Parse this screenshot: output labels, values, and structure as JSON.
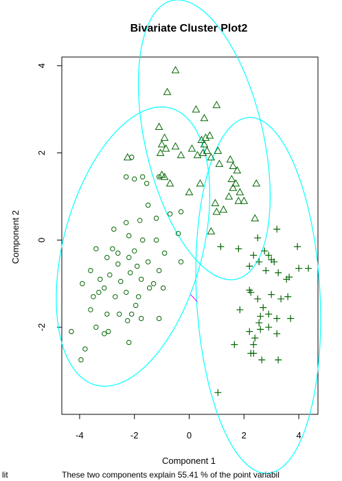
{
  "chart_data": {
    "type": "scatter",
    "title": "Bivariate Cluster Plot2",
    "xlabel": "Component 1",
    "ylabel": "Component 2",
    "subtitle_left": "lit",
    "subtitle": "These two components explain 55.41 % of the point variabil",
    "xlim": [
      -4.65,
      4.7
    ],
    "ylim": [
      -4.0,
      4.2
    ],
    "xticks": [
      -4,
      -2,
      0,
      2,
      4
    ],
    "yticks": [
      -2,
      0,
      2,
      4
    ],
    "colors": {
      "points": "#006400",
      "ellipse": "#00ffff",
      "segment": "#ff00ff",
      "frame": "#000000"
    },
    "ellipses": [
      {
        "center": [
          0.55,
          2.3
        ],
        "semi_axes": [
          3.45,
          2.05
        ],
        "angle_deg": -63
      },
      {
        "center": [
          -2.05,
          -0.15
        ],
        "semi_axes": [
          3.55,
          2.35
        ],
        "angle_deg": 55
      },
      {
        "center": [
          2.52,
          -1.27
        ],
        "semi_axes": [
          4.1,
          2.25
        ],
        "angle_deg": -84
      }
    ],
    "segment": [
      [
        0.05,
        -1.25
      ],
      [
        0.3,
        -1.42
      ]
    ],
    "series": [
      {
        "marker": "triangle",
        "points": [
          [
            -0.5,
            3.9
          ],
          [
            -0.8,
            3.4
          ],
          [
            0.25,
            3.0
          ],
          [
            0.55,
            2.8
          ],
          [
            1.0,
            3.1
          ],
          [
            -1.1,
            2.6
          ],
          [
            -0.9,
            2.35
          ],
          [
            -1.0,
            2.2
          ],
          [
            -0.85,
            2.1
          ],
          [
            -1.05,
            2.0
          ],
          [
            -0.5,
            2.15
          ],
          [
            -0.3,
            1.95
          ],
          [
            0.1,
            2.1
          ],
          [
            0.3,
            1.95
          ],
          [
            0.45,
            2.3
          ],
          [
            0.55,
            2.2
          ],
          [
            0.6,
            2.35
          ],
          [
            0.5,
            2.0
          ],
          [
            0.65,
            2.05
          ],
          [
            0.75,
            2.4
          ],
          [
            0.8,
            1.9
          ],
          [
            1.05,
            2.05
          ],
          [
            1.1,
            1.75
          ],
          [
            1.5,
            1.85
          ],
          [
            1.6,
            1.7
          ],
          [
            1.75,
            1.6
          ],
          [
            1.55,
            1.4
          ],
          [
            1.6,
            1.2
          ],
          [
            1.7,
            1.3
          ],
          [
            1.85,
            1.1
          ],
          [
            2.0,
            0.9
          ],
          [
            1.45,
            1.0
          ],
          [
            1.25,
            0.7
          ],
          [
            1.8,
            0.9
          ],
          [
            2.45,
            1.3
          ],
          [
            -2.25,
            1.9
          ],
          [
            -1.0,
            1.5
          ],
          [
            -0.7,
            1.3
          ],
          [
            0.0,
            1.1
          ],
          [
            0.4,
            1.3
          ],
          [
            -0.9,
            1.45
          ],
          [
            1.0,
            0.65
          ],
          [
            0.95,
            0.85
          ],
          [
            2.4,
            0.5
          ],
          [
            0.8,
            0.2
          ]
        ]
      },
      {
        "marker": "circle",
        "points": [
          [
            -2.1,
            1.9
          ],
          [
            -2.3,
            1.45
          ],
          [
            -2.0,
            1.4
          ],
          [
            -1.7,
            1.45
          ],
          [
            -1.55,
            1.3
          ],
          [
            -1.1,
            1.45
          ],
          [
            -0.7,
            0.6
          ],
          [
            -1.2,
            0.5
          ],
          [
            -1.5,
            0.8
          ],
          [
            -0.3,
            0.65
          ],
          [
            -2.3,
            0.4
          ],
          [
            -1.8,
            0.45
          ],
          [
            -2.2,
            0.1
          ],
          [
            -2.75,
            0.25
          ],
          [
            -3.4,
            -0.2
          ],
          [
            -2.8,
            -0.2
          ],
          [
            -2.0,
            -0.25
          ],
          [
            -1.7,
            0.0
          ],
          [
            -1.2,
            0.0
          ],
          [
            -0.9,
            -0.3
          ],
          [
            -0.3,
            -0.5
          ],
          [
            -3.0,
            -0.4
          ],
          [
            -2.6,
            -0.3
          ],
          [
            -2.2,
            -0.4
          ],
          [
            -1.9,
            -0.6
          ],
          [
            -1.5,
            -0.5
          ],
          [
            -1.1,
            -0.7
          ],
          [
            -3.6,
            -0.7
          ],
          [
            -3.25,
            -0.9
          ],
          [
            -2.9,
            -0.8
          ],
          [
            -2.5,
            -0.95
          ],
          [
            -2.15,
            -0.75
          ],
          [
            -1.75,
            -0.9
          ],
          [
            -1.3,
            -1.0
          ],
          [
            -0.95,
            -1.1
          ],
          [
            -3.9,
            -1.0
          ],
          [
            -3.5,
            -1.3
          ],
          [
            -3.1,
            -1.1
          ],
          [
            -2.7,
            -1.3
          ],
          [
            -2.3,
            -1.2
          ],
          [
            -1.95,
            -1.5
          ],
          [
            -1.45,
            -1.1
          ],
          [
            -3.6,
            -1.6
          ],
          [
            -3.0,
            -1.7
          ],
          [
            -2.55,
            -1.7
          ],
          [
            -2.1,
            -1.7
          ],
          [
            -1.75,
            -1.8
          ],
          [
            -3.4,
            -2.0
          ],
          [
            -2.95,
            -2.1
          ],
          [
            -2.25,
            -1.85
          ],
          [
            -1.1,
            -1.8
          ],
          [
            -4.3,
            -2.1
          ],
          [
            -3.8,
            -2.5
          ],
          [
            -3.1,
            -2.15
          ],
          [
            -2.2,
            -2.35
          ],
          [
            -3.95,
            -2.75
          ],
          [
            -0.4,
            0.15
          ],
          [
            -1.85,
            -1.3
          ],
          [
            -2.6,
            -0.55
          ],
          [
            -3.3,
            -1.2
          ]
        ]
      },
      {
        "marker": "plus",
        "points": [
          [
            3.2,
            0.25
          ],
          [
            2.5,
            0.05
          ],
          [
            1.8,
            -0.2
          ],
          [
            1.15,
            -0.15
          ],
          [
            2.35,
            -0.35
          ],
          [
            2.75,
            -0.25
          ],
          [
            2.9,
            -0.35
          ],
          [
            3.0,
            -0.45
          ],
          [
            3.1,
            -0.5
          ],
          [
            2.55,
            -0.5
          ],
          [
            2.2,
            -0.6
          ],
          [
            2.8,
            -0.7
          ],
          [
            3.25,
            -0.75
          ],
          [
            3.55,
            -0.9
          ],
          [
            3.65,
            -0.85
          ],
          [
            3.95,
            -0.15
          ],
          [
            4.0,
            -0.65
          ],
          [
            4.35,
            -0.65
          ],
          [
            3.0,
            -1.25
          ],
          [
            2.5,
            -1.35
          ],
          [
            3.35,
            -1.35
          ],
          [
            3.6,
            -1.3
          ],
          [
            2.2,
            -1.15
          ],
          [
            2.25,
            -1.2
          ],
          [
            1.85,
            -1.6
          ],
          [
            2.7,
            -1.55
          ],
          [
            2.9,
            -1.7
          ],
          [
            2.6,
            -1.75
          ],
          [
            2.55,
            -1.9
          ],
          [
            3.2,
            -1.8
          ],
          [
            3.7,
            -1.8
          ],
          [
            2.9,
            -2.0
          ],
          [
            2.2,
            -2.1
          ],
          [
            2.6,
            -2.05
          ],
          [
            2.4,
            -2.25
          ],
          [
            2.35,
            -2.4
          ],
          [
            3.2,
            -2.15
          ],
          [
            1.65,
            -2.4
          ],
          [
            2.25,
            -2.6
          ],
          [
            2.35,
            -2.6
          ],
          [
            2.65,
            -2.75
          ],
          [
            3.25,
            -2.75
          ],
          [
            1.05,
            -3.5
          ]
        ]
      }
    ]
  }
}
